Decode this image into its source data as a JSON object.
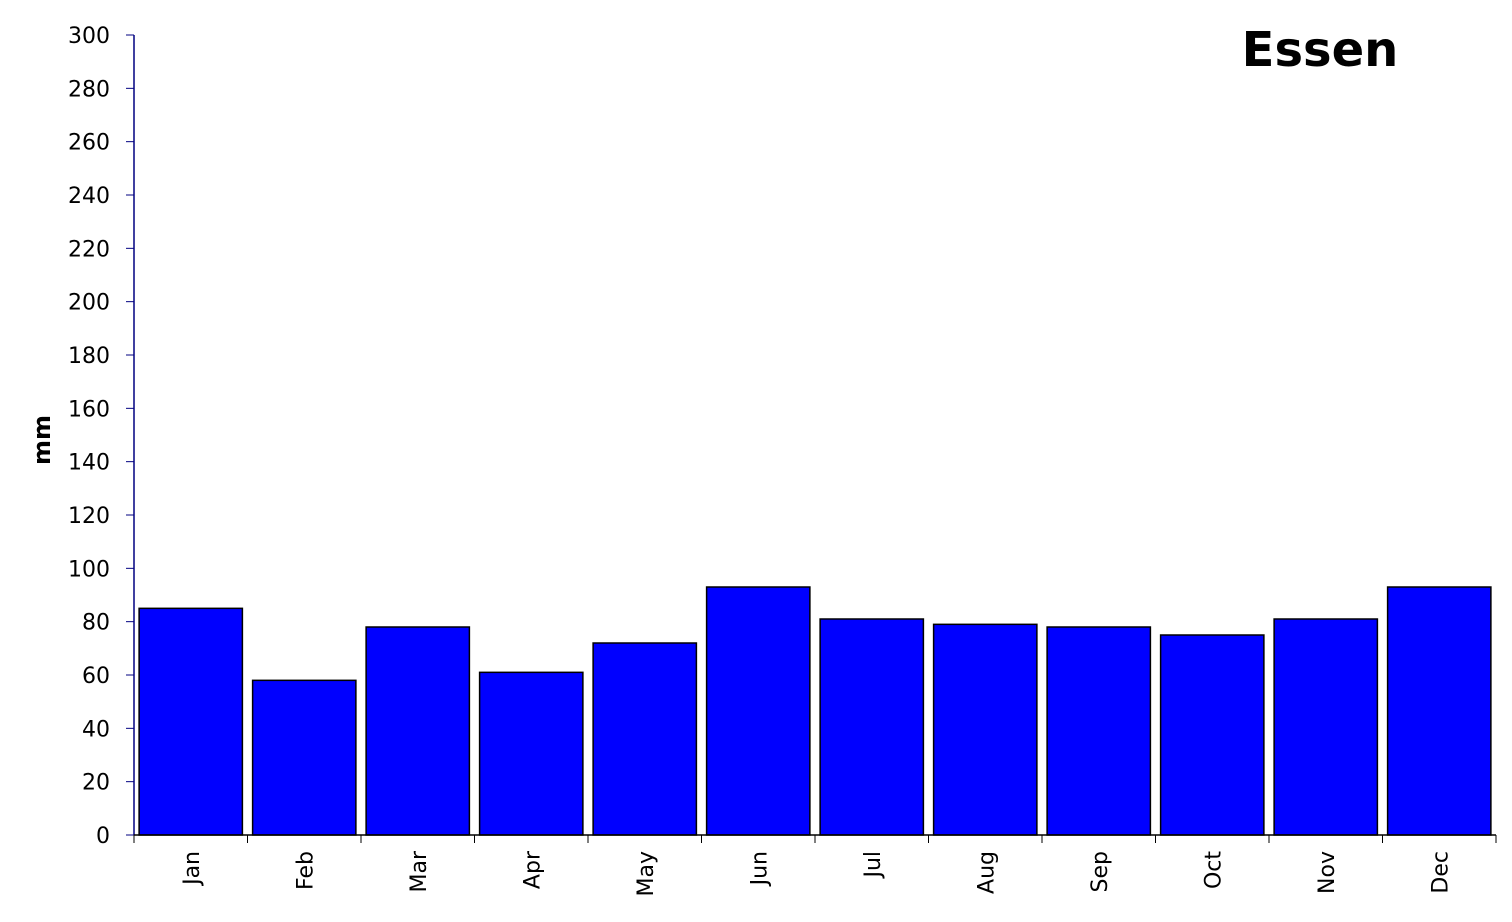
{
  "chart_data": {
    "type": "bar",
    "title": "Essen",
    "y_label": "mm",
    "categories": [
      "Jan",
      "Feb",
      "Mar",
      "Apr",
      "May",
      "Jun",
      "Jul",
      "Aug",
      "Sep",
      "Oct",
      "Nov",
      "Dec"
    ],
    "values": [
      85,
      58,
      78,
      61,
      72,
      93,
      81,
      79,
      78,
      75,
      81,
      93
    ],
    "color": "#0000ff",
    "ylim": [
      0,
      300
    ],
    "yticks": [
      0,
      20,
      40,
      60,
      80,
      100,
      120,
      140,
      160,
      180,
      200,
      220,
      240,
      260,
      280,
      300
    ],
    "grid": false
  }
}
